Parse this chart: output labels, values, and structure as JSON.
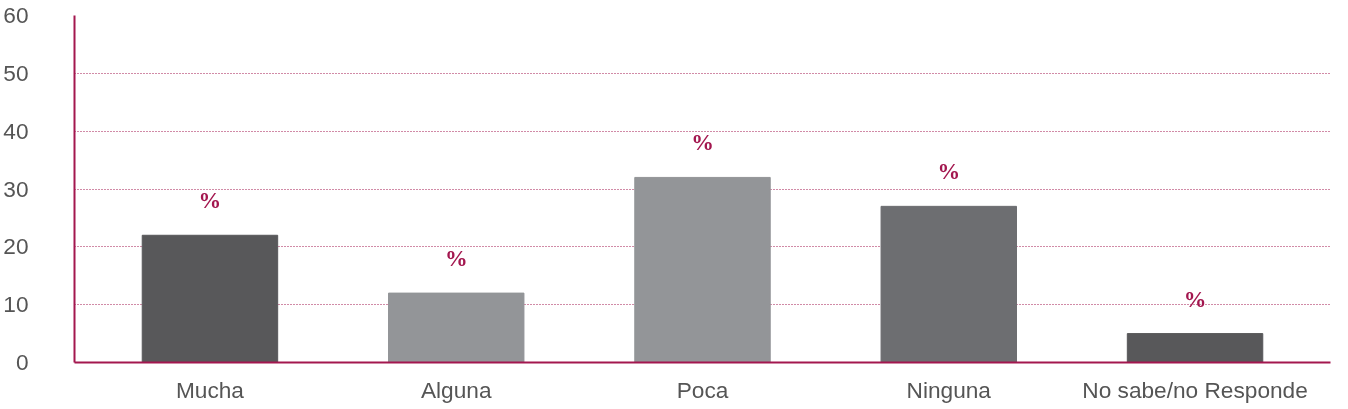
{
  "chart_data": {
    "type": "bar",
    "categories": [
      "Mucha",
      "Alguna",
      "Poca",
      "Ninguna",
      "No sabe/no Responde"
    ],
    "values": [
      22,
      12,
      32,
      27,
      5
    ],
    "colors": [
      "#58585a",
      "#939598",
      "#939598",
      "#6d6e71",
      "#58585a"
    ],
    "value_labels": [
      "%",
      "%",
      "%",
      "%",
      "%"
    ],
    "ylim": [
      0,
      60
    ],
    "yticks": [
      0,
      10,
      20,
      30,
      40,
      50,
      60
    ],
    "grid": "y"
  }
}
